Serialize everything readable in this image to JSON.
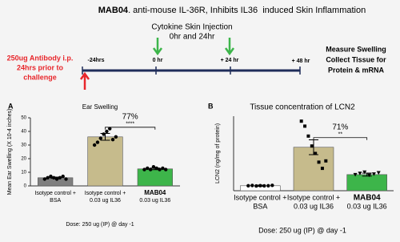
{
  "header": {
    "title_bold": "MAB04",
    "title": ". anti-mouse IL-36R, Inhibits IL36  induced Skin Inflammation"
  },
  "timeline": {
    "antibody": [
      "250ug Antibody i.p.",
      "24hrs prior to",
      "challenge"
    ],
    "injection": [
      "Cytokine Skin Injection",
      "0hr and 24hr"
    ],
    "points": [
      "-24hrs",
      "0 hr",
      "+ 24 hr",
      "+ 48 hr"
    ],
    "outcome": [
      "Measure Swelling",
      "Collect Tissue for",
      "Protein & mRNA"
    ]
  },
  "chart_data": [
    {
      "type": "bar",
      "panel": "A",
      "title": "Ear Swelling",
      "y_label": "Mean Ear Swelling (X 10-4 inches)",
      "categories": [
        [
          "Isotype control +",
          "BSA"
        ],
        [
          "Isotype control +",
          "0.03 ug IL36"
        ],
        [
          "MAB04",
          "0.03 ug IL36"
        ]
      ],
      "values": [
        6,
        36,
        12.5
      ],
      "errors": [
        0.5,
        2.5,
        0.6
      ],
      "points": [
        [
          5,
          6,
          7,
          6,
          5,
          6,
          7,
          5
        ],
        [
          30,
          32,
          35,
          38,
          40,
          42,
          34,
          36
        ],
        [
          12,
          13,
          12,
          14,
          13,
          12,
          13,
          12
        ]
      ],
      "colors": [
        "#7f7f7f",
        "#c6bb8c",
        "#3db54a"
      ],
      "ylim": [
        0,
        50
      ],
      "yticks": [
        0,
        10,
        20,
        30,
        40,
        50
      ],
      "comparison": {
        "percent": "77%",
        "significance": "****"
      },
      "footer": "Dose: 250 ug (IP) @ day -1"
    },
    {
      "type": "bar",
      "panel": "B",
      "title": "Tissue concentration of LCN2",
      "y_label": "LCN2 (ng/mg of protein)",
      "categories": [
        [
          "Isotype control +",
          "BSA"
        ],
        [
          "Isotype control +",
          "0.03 ug IL36"
        ],
        [
          "MAB04",
          "0.03 ug IL36"
        ]
      ],
      "values": [
        40,
        350,
        130
      ],
      "errors": [
        5,
        60,
        12
      ],
      "points": [
        [
          40,
          42,
          38,
          41,
          39,
          40,
          43
        ],
        [
          560,
          520,
          440,
          360,
          300,
          230,
          180,
          240
        ],
        [
          130,
          140,
          150,
          125,
          135,
          145
        ]
      ],
      "colors": [
        "#ffffff",
        "#c6bb8c",
        "#3db54a"
      ],
      "ylim": [
        0,
        600
      ],
      "comparison": {
        "percent": "71%",
        "significance": "**"
      },
      "footer": "Dose: 250 ug (IP) @ day -1"
    }
  ]
}
